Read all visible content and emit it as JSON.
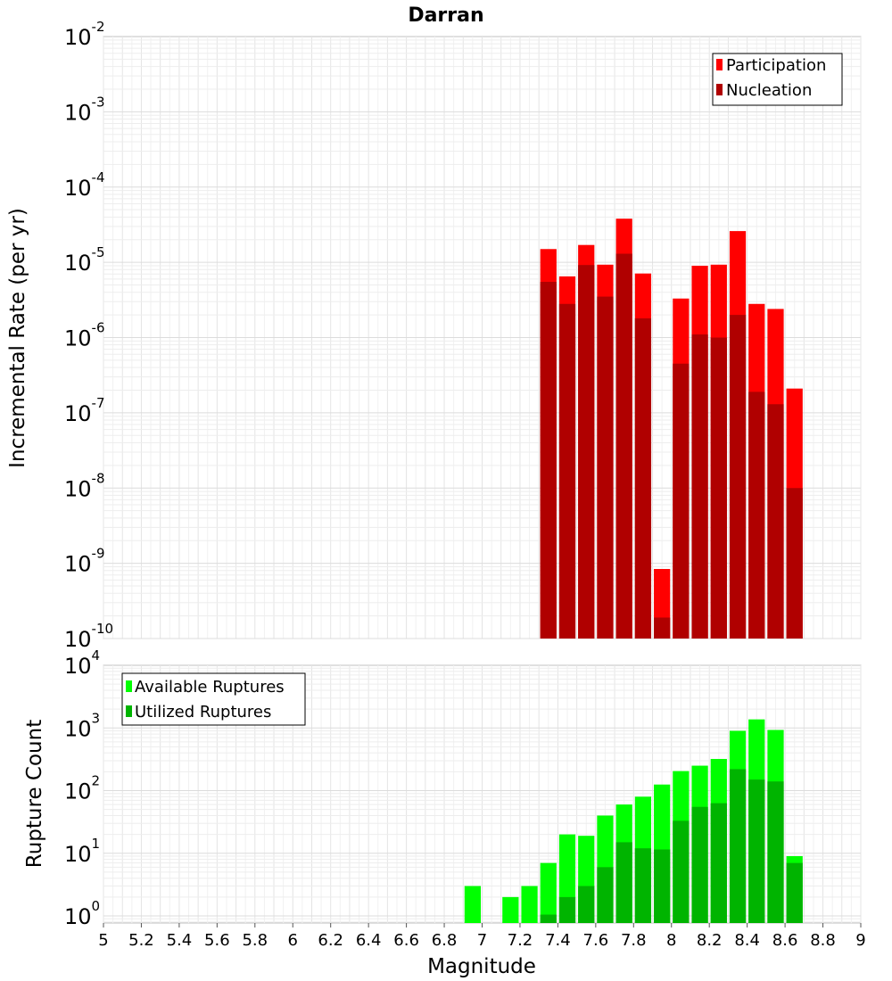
{
  "title": "Darran",
  "xlabel": "Magnitude",
  "x_tick_labels": [
    "5",
    "5.2",
    "5.4",
    "5.6",
    "5.8",
    "6",
    "6.2",
    "6.4",
    "6.6",
    "6.8",
    "7",
    "7.2",
    "7.4",
    "7.6",
    "7.8",
    "8",
    "8.2",
    "8.4",
    "8.6",
    "8.8",
    "9"
  ],
  "chart_data": [
    {
      "type": "bar",
      "ylabel": "Incremental Rate (per yr)",
      "y_scale": "log",
      "ylim": [
        1e-10,
        0.01
      ],
      "xlim": [
        5,
        9
      ],
      "bar_width": 0.1,
      "y_ticks": [
        {
          "base": "10",
          "exp": "-2"
        },
        {
          "base": "10",
          "exp": "-3"
        },
        {
          "base": "10",
          "exp": "-4"
        },
        {
          "base": "10",
          "exp": "-5"
        },
        {
          "base": "10",
          "exp": "-6"
        },
        {
          "base": "10",
          "exp": "-7"
        },
        {
          "base": "10",
          "exp": "-8"
        },
        {
          "base": "10",
          "exp": "-9"
        },
        {
          "base": "10",
          "exp": "-10"
        }
      ],
      "grid": true,
      "legend_position": "top-right",
      "x": [
        7.35,
        7.45,
        7.55,
        7.65,
        7.75,
        7.85,
        7.95,
        8.05,
        8.15,
        8.25,
        8.35,
        8.45,
        8.55,
        8.65
      ],
      "series": [
        {
          "name": "Participation",
          "color": "#ff0000",
          "values": [
            1.5e-05,
            6.5e-06,
            1.7e-05,
            9.3e-06,
            3.8e-05,
            7.1e-06,
            8.4e-10,
            3.3e-06,
            9e-06,
            9.3e-06,
            2.6e-05,
            2.8e-06,
            2.4e-06,
            2.1e-07
          ]
        },
        {
          "name": "Nucleation",
          "color": "#b00000",
          "values": [
            5.5e-06,
            2.8e-06,
            9.2e-06,
            3.5e-06,
            1.3e-05,
            1.8e-06,
            1.9e-10,
            4.5e-07,
            1.1e-06,
            1e-06,
            2e-06,
            1.9e-07,
            1.3e-07,
            1e-08
          ]
        }
      ]
    },
    {
      "type": "bar",
      "ylabel": "Rupture Count",
      "y_scale": "log",
      "ylim": [
        0.77,
        10000
      ],
      "xlim": [
        5,
        9
      ],
      "bar_width": 0.1,
      "y_ticks": [
        {
          "base": "10",
          "exp": "4",
          "value": 10000
        },
        {
          "base": "10",
          "exp": "3",
          "value": 1000
        },
        {
          "base": "10",
          "exp": "2",
          "value": 100
        },
        {
          "base": "10",
          "exp": "1",
          "value": 10
        },
        {
          "base": "10",
          "exp": "0",
          "value": 1
        }
      ],
      "grid": true,
      "legend_position": "top-left",
      "x": [
        6.95,
        7.15,
        7.25,
        7.35,
        7.45,
        7.55,
        7.65,
        7.75,
        7.85,
        7.95,
        8.05,
        8.15,
        8.25,
        8.35,
        8.45,
        8.55,
        8.65
      ],
      "series": [
        {
          "name": "Available Ruptures",
          "color": "#00ff00",
          "values": [
            3,
            2,
            3,
            7,
            20,
            19,
            40,
            60,
            80,
            125,
            205,
            250,
            320,
            900,
            1370,
            930,
            9
          ]
        },
        {
          "name": "Utilized Ruptures",
          "color": "#00b400",
          "values": [
            0,
            0,
            0,
            1.05,
            2,
            3,
            6,
            15,
            12,
            11.5,
            33,
            55,
            63,
            220,
            150,
            140,
            7
          ]
        }
      ]
    }
  ]
}
